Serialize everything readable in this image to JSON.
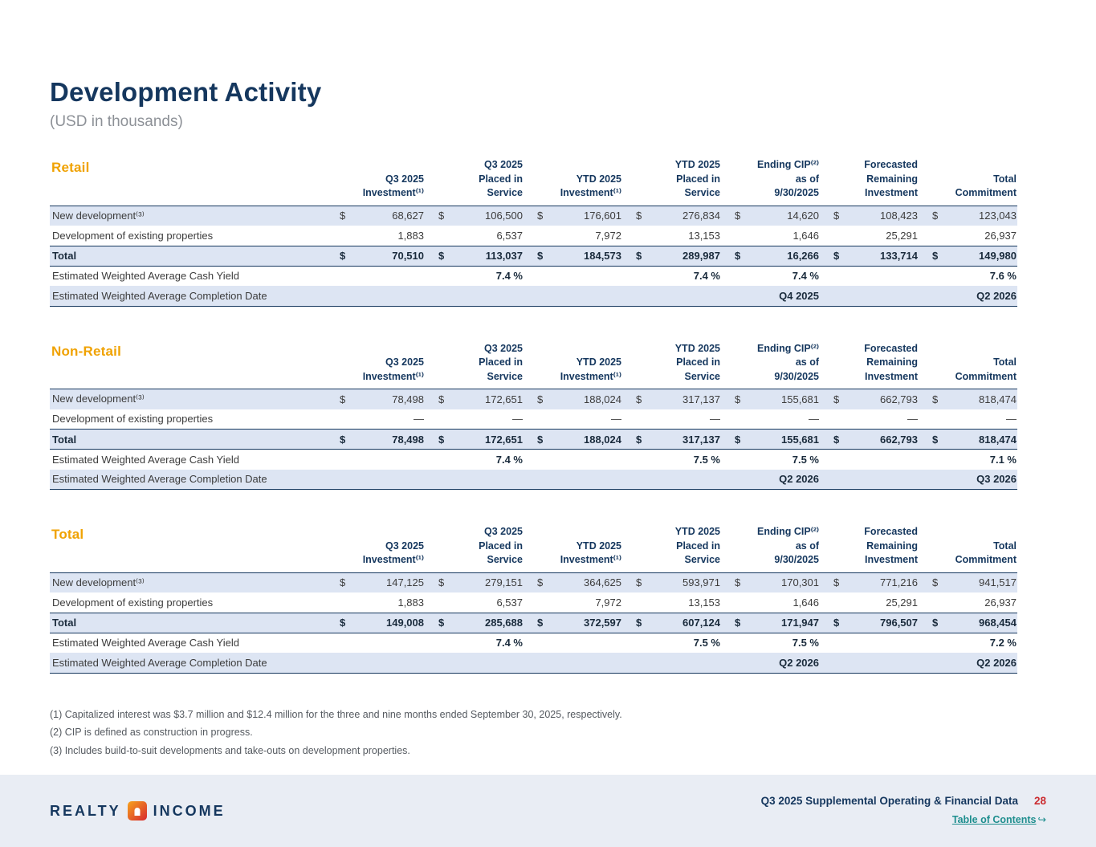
{
  "page": {
    "title": "Development Activity",
    "subtitle": "(USD in thousands)",
    "footnotes": [
      "(1) Capitalized interest was $3.7 million and $12.4 million for the three and nine months ended September 30, 2025, respectively.",
      "(2) CIP is defined as construction in progress.",
      "(3) Includes build-to-suit developments and take-outs on development properties."
    ]
  },
  "columns": [
    [
      "Q3 2025",
      "Investment⁽¹⁾"
    ],
    [
      "Q3 2025",
      "Placed in",
      "Service"
    ],
    [
      "YTD 2025",
      "Investment⁽¹⁾"
    ],
    [
      "YTD 2025",
      "Placed in",
      "Service"
    ],
    [
      "Ending CIP⁽²⁾",
      "as of",
      "9/30/2025"
    ],
    [
      "Forecasted",
      "Remaining",
      "Investment"
    ],
    [
      "Total",
      "Commitment"
    ]
  ],
  "tables": [
    {
      "section": "Retail",
      "rows": [
        {
          "label": "New development⁽³⁾",
          "dollar": true,
          "values": [
            "68,627",
            "106,500",
            "176,601",
            "276,834",
            "14,620",
            "108,423",
            "123,043"
          ]
        },
        {
          "label": "Development of existing properties",
          "dollar": false,
          "values": [
            "1,883",
            "6,537",
            "7,972",
            "13,153",
            "1,646",
            "25,291",
            "26,937"
          ]
        },
        {
          "label": "Total",
          "dollar": true,
          "total": true,
          "values": [
            "70,510",
            "113,037",
            "184,573",
            "289,987",
            "16,266",
            "133,714",
            "149,980"
          ]
        },
        {
          "label": "Estimated Weighted Average Cash Yield",
          "dollar": false,
          "bold_values": true,
          "values": [
            "",
            "7.4 %",
            "",
            "7.4 %",
            "7.4 %",
            "",
            "7.6 %"
          ]
        },
        {
          "label": "Estimated Weighted Average Completion Date",
          "dollar": false,
          "bold_values": true,
          "last": true,
          "values": [
            "",
            "",
            "",
            "",
            "Q4 2025",
            "",
            "Q2 2026"
          ]
        }
      ]
    },
    {
      "section": "Non-Retail",
      "rows": [
        {
          "label": "New development⁽³⁾",
          "dollar": true,
          "values": [
            "78,498",
            "172,651",
            "188,024",
            "317,137",
            "155,681",
            "662,793",
            "818,474"
          ]
        },
        {
          "label": "Development of existing properties",
          "dollar": false,
          "values": [
            "—",
            "—",
            "—",
            "—",
            "—",
            "—",
            "—"
          ]
        },
        {
          "label": "Total",
          "dollar": true,
          "total": true,
          "values": [
            "78,498",
            "172,651",
            "188,024",
            "317,137",
            "155,681",
            "662,793",
            "818,474"
          ]
        },
        {
          "label": "Estimated Weighted Average Cash Yield",
          "dollar": false,
          "bold_values": true,
          "values": [
            "",
            "7.4 %",
            "",
            "7.5 %",
            "7.5 %",
            "",
            "7.1 %"
          ]
        },
        {
          "label": "Estimated Weighted Average Completion Date",
          "dollar": false,
          "bold_values": true,
          "last": true,
          "values": [
            "",
            "",
            "",
            "",
            "Q2 2026",
            "",
            "Q3 2026"
          ]
        }
      ]
    },
    {
      "section": "Total",
      "rows": [
        {
          "label": "New development⁽³⁾",
          "dollar": true,
          "values": [
            "147,125",
            "279,151",
            "364,625",
            "593,971",
            "170,301",
            "771,216",
            "941,517"
          ]
        },
        {
          "label": "Development of existing properties",
          "dollar": false,
          "values": [
            "1,883",
            "6,537",
            "7,972",
            "13,153",
            "1,646",
            "25,291",
            "26,937"
          ]
        },
        {
          "label": "Total",
          "dollar": true,
          "total": true,
          "values": [
            "149,008",
            "285,688",
            "372,597",
            "607,124",
            "171,947",
            "796,507",
            "968,454"
          ]
        },
        {
          "label": "Estimated Weighted Average Cash Yield",
          "dollar": false,
          "bold_values": true,
          "values": [
            "",
            "7.4 %",
            "",
            "7.5 %",
            "7.5 %",
            "",
            "7.2 %"
          ]
        },
        {
          "label": "Estimated Weighted Average Completion Date",
          "dollar": false,
          "bold_values": true,
          "last": true,
          "values": [
            "",
            "",
            "",
            "",
            "Q2 2026",
            "",
            "Q2 2026"
          ]
        }
      ]
    }
  ],
  "footer": {
    "brand_left": "REALTY",
    "brand_right": "INCOME",
    "doc_title": "Q3 2025 Supplemental Operating & Financial Data",
    "page_number": "28",
    "toc_link": "Table of Contents",
    "toc_arrow": "↪"
  }
}
